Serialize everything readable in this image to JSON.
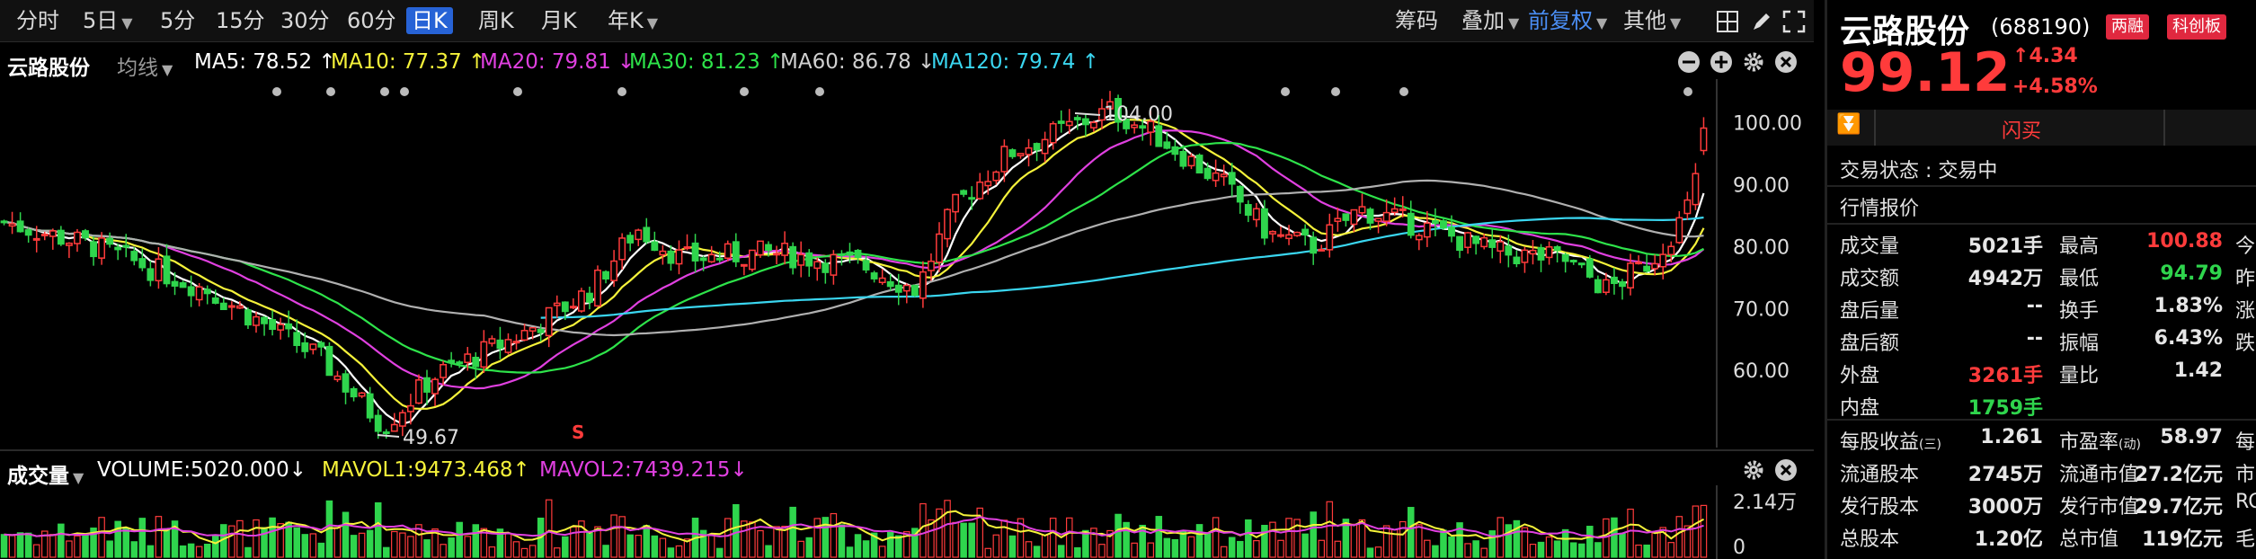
{
  "toolbar": {
    "periods": [
      "分时",
      "5日",
      "5分",
      "15分",
      "30分",
      "60分",
      "日K",
      "周K",
      "月K",
      "年K"
    ],
    "active_period": "日K",
    "right_items": [
      "筹码",
      "叠加",
      "前复权",
      "其他"
    ]
  },
  "chart_header": {
    "stock_name": "云路股份",
    "ma_type": "均线",
    "ma5": "MA5: 78.52 ↑",
    "ma10": "MA10: 77.37 ↑",
    "ma20": "MA20: 79.81 ↓",
    "ma30": "MA30: 81.23 ↑",
    "ma60": "MA60: 86.78 ↓",
    "ma120": "MA120: 79.74 ↑"
  },
  "volume_header": {
    "label": "成交量",
    "volume": "VOLUME:5020.000↓",
    "mavol1": "MAVOL1:9473.468↑",
    "mavol2": "MAVOL2:7439.215↓"
  },
  "chart_data": {
    "type": "candlestick",
    "y_ticks": [
      "100.00",
      "90.00",
      "80.00",
      "70.00",
      "60.00"
    ],
    "ylim": [
      49,
      105
    ],
    "annotations": {
      "high_label": "104.00",
      "low_label": "49.67",
      "signal": "S"
    },
    "volume_ticks": [
      "2.14万",
      "0"
    ],
    "ma_colors": {
      "ma5": "#ffffff",
      "ma10": "#f5f23a",
      "ma20": "#e040e0",
      "ma30": "#2ee34a",
      "ma60": "#b0b0b0",
      "ma120": "#3ad6f0"
    },
    "up_color": "#ff3b3b",
    "down_color": "#2fd54d"
  },
  "panel": {
    "name": "云路股份",
    "code": "(688190)",
    "tag1": "两融",
    "tag2": "科创板",
    "price": "99.12",
    "change": "4.34",
    "change_pct": "+4.58%",
    "flash_sell": "闪买",
    "status_label": "交易状态",
    "status_value": "交易中",
    "section_title": "行情报价",
    "rows": [
      {
        "l1": "成交量",
        "v1": "5021手",
        "l2": "最高",
        "v2": "100.88",
        "l3": "今"
      },
      {
        "l1": "成交额",
        "v1": "4942万",
        "l2": "最低",
        "v2": "94.79",
        "l3": "昨"
      },
      {
        "l1": "盘后量",
        "v1": "--",
        "l2": "换手",
        "v2": "1.83%",
        "l3": "涨"
      },
      {
        "l1": "盘后额",
        "v1": "--",
        "l2": "振幅",
        "v2": "6.43%",
        "l3": "跌"
      },
      {
        "l1": "外盘",
        "v1": "3261手",
        "l2": "量比",
        "v2": "1.42",
        "l3": ""
      },
      {
        "l1": "内盘",
        "v1": "1759手",
        "l2": "",
        "v2": "",
        "l3": ""
      }
    ],
    "fund_rows": [
      {
        "l1": "每股收益",
        "sub1": "(三)",
        "v1": "1.261",
        "l2": "市盈率",
        "sub2": "(动)",
        "v2": "58.97",
        "l3": "每"
      },
      {
        "l1": "流通股本",
        "sub1": "",
        "v1": "2745万",
        "l2": "流通市值",
        "sub2": "",
        "v2": "27.2亿元",
        "l3": "市"
      },
      {
        "l1": "发行股本",
        "sub1": "",
        "v1": "3000万",
        "l2": "发行市值",
        "sub2": "",
        "v2": "29.7亿元",
        "l3": "RC"
      },
      {
        "l1": "总股本",
        "sub1": "",
        "v1": "1.20亿",
        "l2": "总市值",
        "sub2": "",
        "v2": "119亿元",
        "l3": "毛"
      }
    ]
  }
}
